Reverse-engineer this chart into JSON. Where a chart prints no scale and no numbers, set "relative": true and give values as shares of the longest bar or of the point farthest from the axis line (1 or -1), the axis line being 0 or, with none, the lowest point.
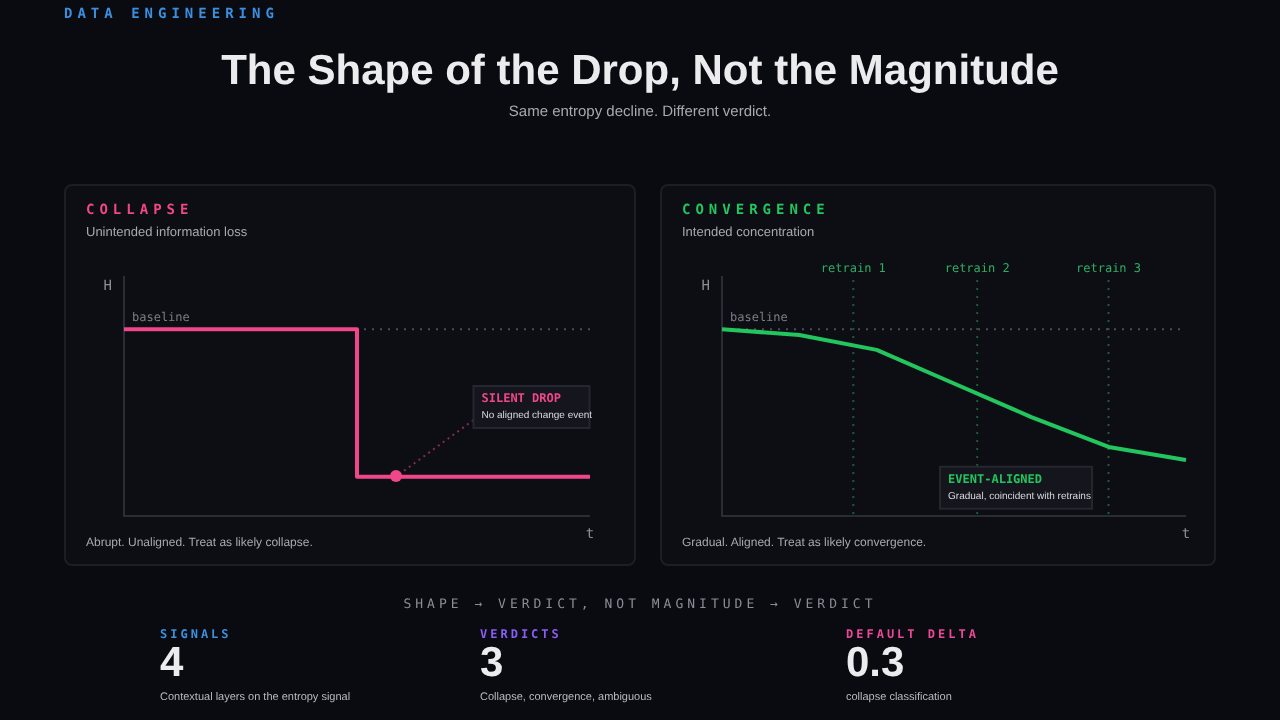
{
  "chart_data": [
    {
      "type": "other",
      "title": "The Shape of the Drop, Not the Magnitude",
      "subtitle": "Same entropy decline. Different verdict.",
      "annotations": [
        "DATA ENGINEERING"
      ]
    },
    {
      "type": "step",
      "title": "COLLAPSE",
      "subtitle": "Unintended information loss",
      "xlabel": "t",
      "ylabel": "H",
      "categories": [
        null,
        null,
        null,
        null,
        null,
        null,
        null,
        null,
        null,
        null,
        null,
        null,
        null
      ],
      "values": [
        1,
        1,
        1,
        1,
        1,
        1,
        1,
        0.21,
        0.21,
        0.21,
        0.21,
        0.21,
        0.21
      ],
      "color": "#f0468a",
      "relative": true,
      "ref_lines": [
        {
          "axis": "y",
          "value": 1,
          "label": "baseline",
          "color": "#4a4d56",
          "line_style": "dotted"
        }
      ],
      "annotations": [
        "SILENT DROP",
        "No aligned change event",
        "Abrupt. Unaligned. Treat as likely collapse."
      ]
    },
    {
      "type": "line",
      "title": "CONVERGENCE",
      "subtitle": "Intended concentration",
      "xlabel": "t",
      "ylabel": "H",
      "categories": [
        null,
        null,
        null,
        null,
        null,
        null,
        null
      ],
      "values": [
        1,
        0.97,
        0.89,
        0.71,
        0.53,
        0.37,
        0.3
      ],
      "color": "#22c55e",
      "relative": true,
      "marker": "none",
      "ref_lines": [
        {
          "axis": "y",
          "value": 1,
          "label": "baseline",
          "color": "#4a4d56",
          "line_style": "dotted"
        }
      ],
      "annotations": [
        "EVENT-ALIGNED",
        "Gradual, coincident with retrains",
        "Gradual. Aligned. Treat as likely convergence.",
        "retrain 1",
        "retrain 2",
        "retrain 3"
      ]
    },
    {
      "type": "other",
      "title": "SHAPE → VERDICT, NOT MAGNITUDE → VERDICT",
      "annotations": [
        "SIGNALS",
        "4",
        "Contextual layers on the entropy signal",
        "VERDICTS",
        "3",
        "Collapse, convergence, ambiguous",
        "DEFAULT DELTA",
        "0.3",
        "collapse classification"
      ]
    }
  ]
}
